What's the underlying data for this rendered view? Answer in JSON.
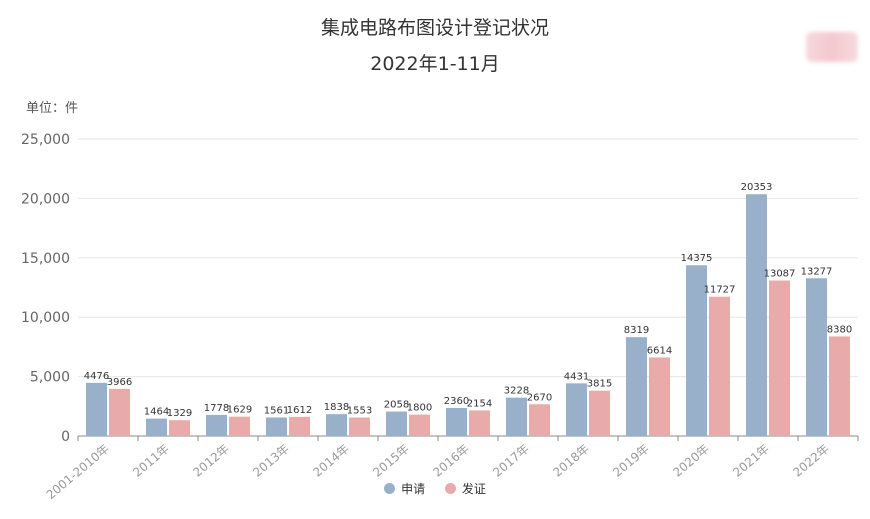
{
  "chart_data": {
    "type": "bar",
    "title": "集成电路布图设计登记状况",
    "subtitle": "2022年1-11月",
    "unit": "单位：件",
    "categories": [
      "2001-2010年",
      "2011年",
      "2012年",
      "2013年",
      "2014年",
      "2015年",
      "2016年",
      "2017年",
      "2018年",
      "2019年",
      "2020年",
      "2021年",
      "2022年"
    ],
    "series": [
      {
        "name": "申请",
        "color": "#98b0c9",
        "values": [
          4476,
          1464,
          1778,
          1561,
          1838,
          2058,
          2360,
          3228,
          4431,
          8319,
          14375,
          20353,
          13277
        ]
      },
      {
        "name": "发证",
        "color": "#e9aaaa",
        "values": [
          3966,
          1329,
          1629,
          1612,
          1553,
          1800,
          2154,
          2670,
          3815,
          6614,
          11727,
          13087,
          8380
        ]
      }
    ],
    "ylim": [
      0,
      25000
    ],
    "yticks": [
      "0",
      "5,000",
      "10,000",
      "15,000",
      "20,000",
      "25,000"
    ],
    "grid": true,
    "legend_position": "bottom"
  }
}
